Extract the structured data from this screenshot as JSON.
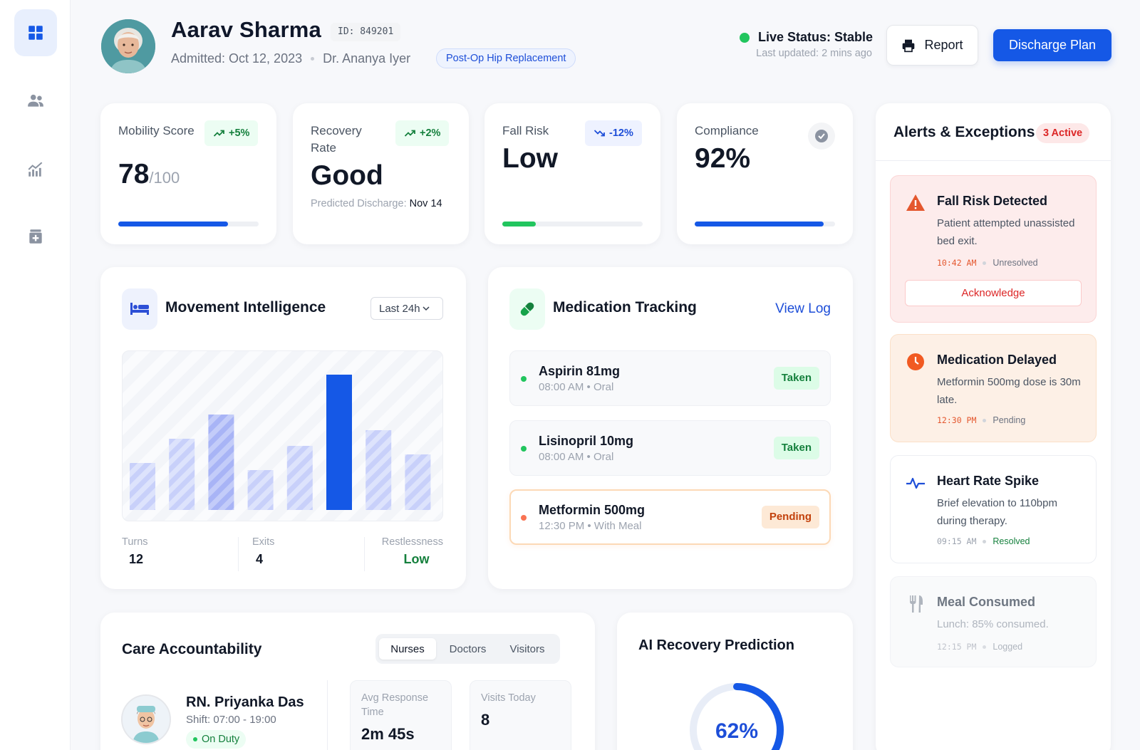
{
  "patient": {
    "name": "Aarav Sharma",
    "id_label": "ID: 849201",
    "admitted": "Admitted: Oct 12, 2023",
    "doctor": "Dr. Ananya Iyer",
    "procedure": "Post-Op Hip Replacement"
  },
  "status": {
    "live": "Live Status: Stable",
    "updated": "Last updated: 2 mins ago"
  },
  "actions": {
    "report": "Report",
    "discharge": "Discharge Plan"
  },
  "sidebar": {
    "items": [
      {
        "icon": "dashboard-icon",
        "active": true
      },
      {
        "icon": "users-icon",
        "active": false
      },
      {
        "icon": "analytics-icon",
        "active": false
      },
      {
        "icon": "medical-kit-icon",
        "active": false
      }
    ]
  },
  "kpis": {
    "mobility": {
      "label": "Mobility Score",
      "trend": "+5%",
      "value": "78",
      "unit": "/100",
      "progress": 0.78
    },
    "recovery": {
      "label": "Recovery Rate",
      "trend": "+2%",
      "value": "Good",
      "sub_label": "Predicted Discharge: ",
      "sub_value": "Nov 14"
    },
    "fall_risk": {
      "label": "Fall Risk",
      "trend": "-12%",
      "value": "Low",
      "progress": 0.24
    },
    "compliance": {
      "label": "Compliance",
      "value": "92%",
      "progress": 0.92
    }
  },
  "movement": {
    "title": "Movement Intelligence",
    "range": "Last 24h",
    "bar_values": [
      33,
      50,
      67,
      28,
      45,
      95,
      56,
      39
    ],
    "highlight_index": 5,
    "stats": {
      "turns_label": "Turns",
      "turns_value": "12",
      "exits_label": "Exits",
      "exits_value": "4",
      "restless_label": "Restlessness",
      "restless_value": "Low"
    }
  },
  "medication": {
    "title": "Medication Tracking",
    "view_log": "View Log",
    "items": [
      {
        "name": "Aspirin 81mg",
        "meta": "08:00 AM • Oral",
        "status": "Taken"
      },
      {
        "name": "Lisinopril 10mg",
        "meta": "08:00 AM • Oral",
        "status": "Taken"
      },
      {
        "name": "Metformin 500mg",
        "meta": "12:30 PM • With Meal",
        "status": "Pending"
      }
    ]
  },
  "alerts": {
    "title": "Alerts & Exceptions",
    "count": "3 Active",
    "items": [
      {
        "title": "Fall Risk Detected",
        "desc": "Patient attempted unassisted bed exit.",
        "time": "10:42 AM",
        "state": "Unresolved",
        "action": "Acknowledge"
      },
      {
        "title": "Medication Delayed",
        "desc": "Metformin 500mg dose is 30m late.",
        "time": "12:30 PM",
        "state": "Pending"
      },
      {
        "title": "Heart Rate Spike",
        "desc": "Brief elevation to 110bpm during therapy.",
        "time": "09:15 AM",
        "state": "Resolved"
      },
      {
        "title": "Meal Consumed",
        "desc": "Lunch: 85% consumed.",
        "time": "12:15 PM",
        "state": "Logged"
      }
    ]
  },
  "care": {
    "title": "Care Accountability",
    "tabs": [
      "Nurses",
      "Doctors",
      "Visitors"
    ],
    "nurse": {
      "name": "RN. Priyanka Das",
      "shift": "Shift: 07:00 - 19:00",
      "status": "On Duty"
    },
    "metrics": {
      "response_label": "Avg Response Time",
      "response_value": "2m 45s",
      "visits_label": "Visits Today",
      "visits_value": "8"
    }
  },
  "ai": {
    "title": "AI Recovery Prediction",
    "value": "62%",
    "progress": 0.62
  },
  "colors": {
    "primary": "#1558e6",
    "success": "#22c55e",
    "danger": "#dc2626",
    "warning": "#f97316"
  }
}
